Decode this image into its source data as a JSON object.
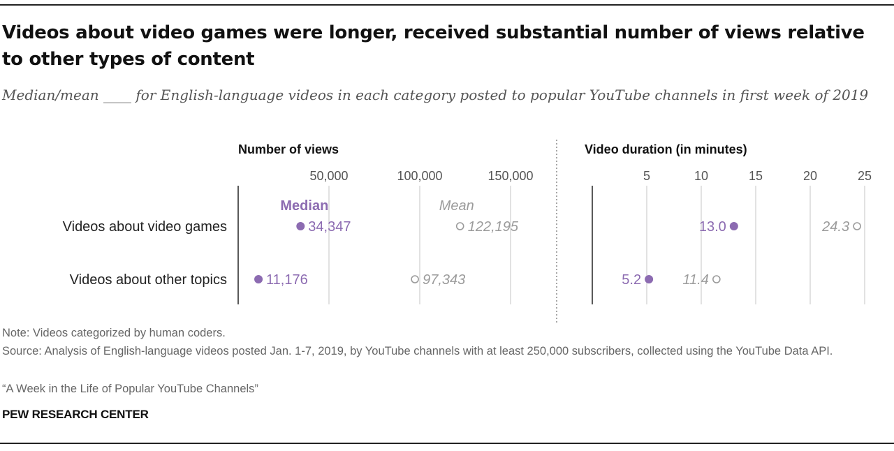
{
  "title": "Videos about video games were longer, received substantial number of views relative to other types of content",
  "subtitle": "Median/mean ____ for English-language videos in each category posted to popular YouTube channels in first week of 2019",
  "note": "Note: Videos categorized by human coders.",
  "source": "Source: Analysis of English-language videos posted Jan. 1-7, 2019, by YouTube channels with at least 250,000 subscribers, collected using the YouTube Data API.",
  "report": "“A Week in the Life of Popular YouTube Channels”",
  "brand": "PEW RESEARCH CENTER",
  "colors": {
    "median": "#8c6bb1",
    "mean": "#9b9b9b",
    "grid": "#d9d9d9",
    "axis": "#222222"
  },
  "chart_data": [
    {
      "type": "scatter",
      "title": "Number of views",
      "categories": [
        "Videos about video games",
        "Videos about other topics"
      ],
      "series": [
        {
          "name": "Median",
          "values": [
            34347,
            11176
          ],
          "labels": [
            "34,347",
            "11,176"
          ]
        },
        {
          "name": "Mean",
          "values": [
            122195,
            97343
          ],
          "labels": [
            "122,195",
            "97,343"
          ]
        }
      ],
      "ticks": [
        50000,
        100000,
        150000
      ],
      "tick_labels": [
        "50,000",
        "100,000",
        "150,000"
      ],
      "xlim": [
        0,
        165000
      ]
    },
    {
      "type": "scatter",
      "title": "Video duration (in minutes)",
      "categories": [
        "Videos about video games",
        "Videos about other topics"
      ],
      "series": [
        {
          "name": "Median",
          "values": [
            13.0,
            5.2
          ],
          "labels": [
            "13.0",
            "5.2"
          ]
        },
        {
          "name": "Mean",
          "values": [
            24.3,
            11.4
          ],
          "labels": [
            "24.3",
            "11.4"
          ]
        }
      ],
      "ticks": [
        5,
        10,
        15,
        20,
        25
      ],
      "tick_labels": [
        "5",
        "10",
        "15",
        "20",
        "25"
      ],
      "xlim": [
        0,
        26
      ]
    }
  ]
}
